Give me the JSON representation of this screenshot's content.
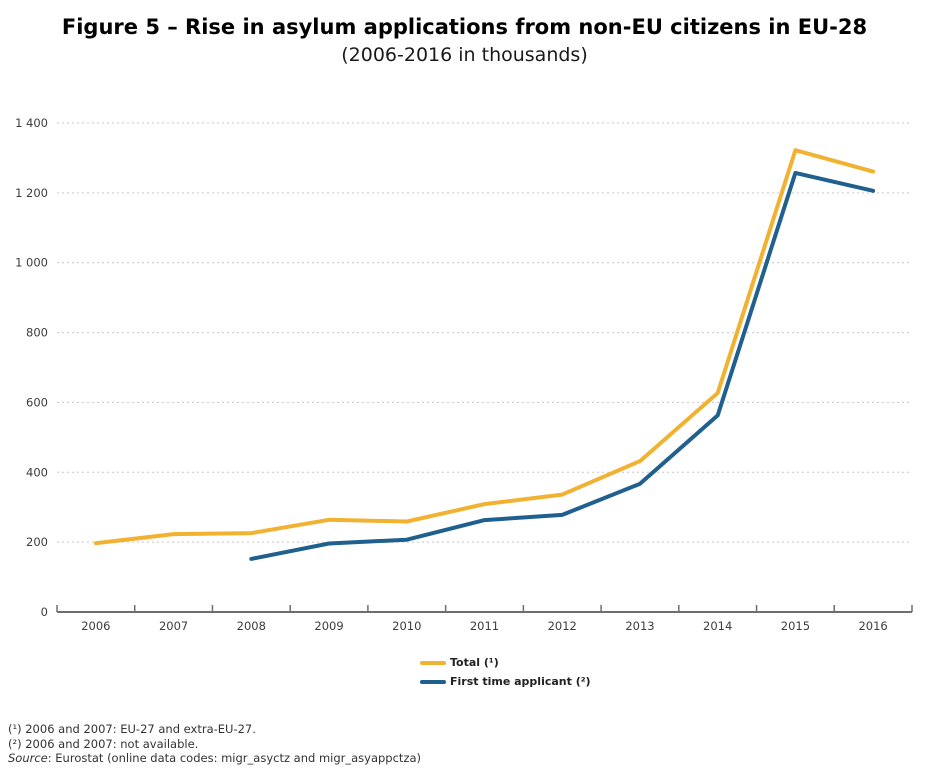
{
  "chart_data": {
    "type": "line",
    "title": "Figure 5 – Rise in asylum applications from non-EU citizens in EU-28",
    "subtitle": "(2006-2016 in thousands)",
    "categories": [
      "2006",
      "2007",
      "2008",
      "2009",
      "2010",
      "2011",
      "2012",
      "2013",
      "2014",
      "2015",
      "2016"
    ],
    "series": [
      {
        "id": "total",
        "name": "Total (¹)",
        "color": "#F2B231",
        "values": [
          197,
          223,
          226,
          264,
          259,
          309,
          336,
          432,
          627,
          1322,
          1261
        ]
      },
      {
        "id": "first-time-applicant",
        "name": "First time applicant (²)",
        "color": "#1F608E",
        "values": [
          null,
          null,
          152,
          196,
          207,
          263,
          278,
          367,
          563,
          1257,
          1206
        ]
      }
    ],
    "ylim": [
      0,
      1400
    ],
    "yticks": {
      "values": [
        0,
        200,
        400,
        600,
        800,
        1000,
        1200,
        1400
      ],
      "labels": [
        "0",
        "200",
        "400",
        "600",
        "800",
        "1 000",
        "1 200",
        "1 400"
      ]
    },
    "grid": "horizontal-dotted",
    "legend_position": "bottom-center",
    "colors": {
      "axis": "#6e6e6e",
      "grid": "#c6c6c6",
      "label": "#3d3d3d"
    }
  },
  "footnotes": {
    "note1": "(¹) 2006 and 2007: EU-27 and extra-EU-27.",
    "note2": "(²) 2006 and 2007: not available.",
    "source": {
      "label": "Source",
      "text": ": Eurostat (online data codes: migr_asyctz and migr_asyappctza)"
    }
  }
}
